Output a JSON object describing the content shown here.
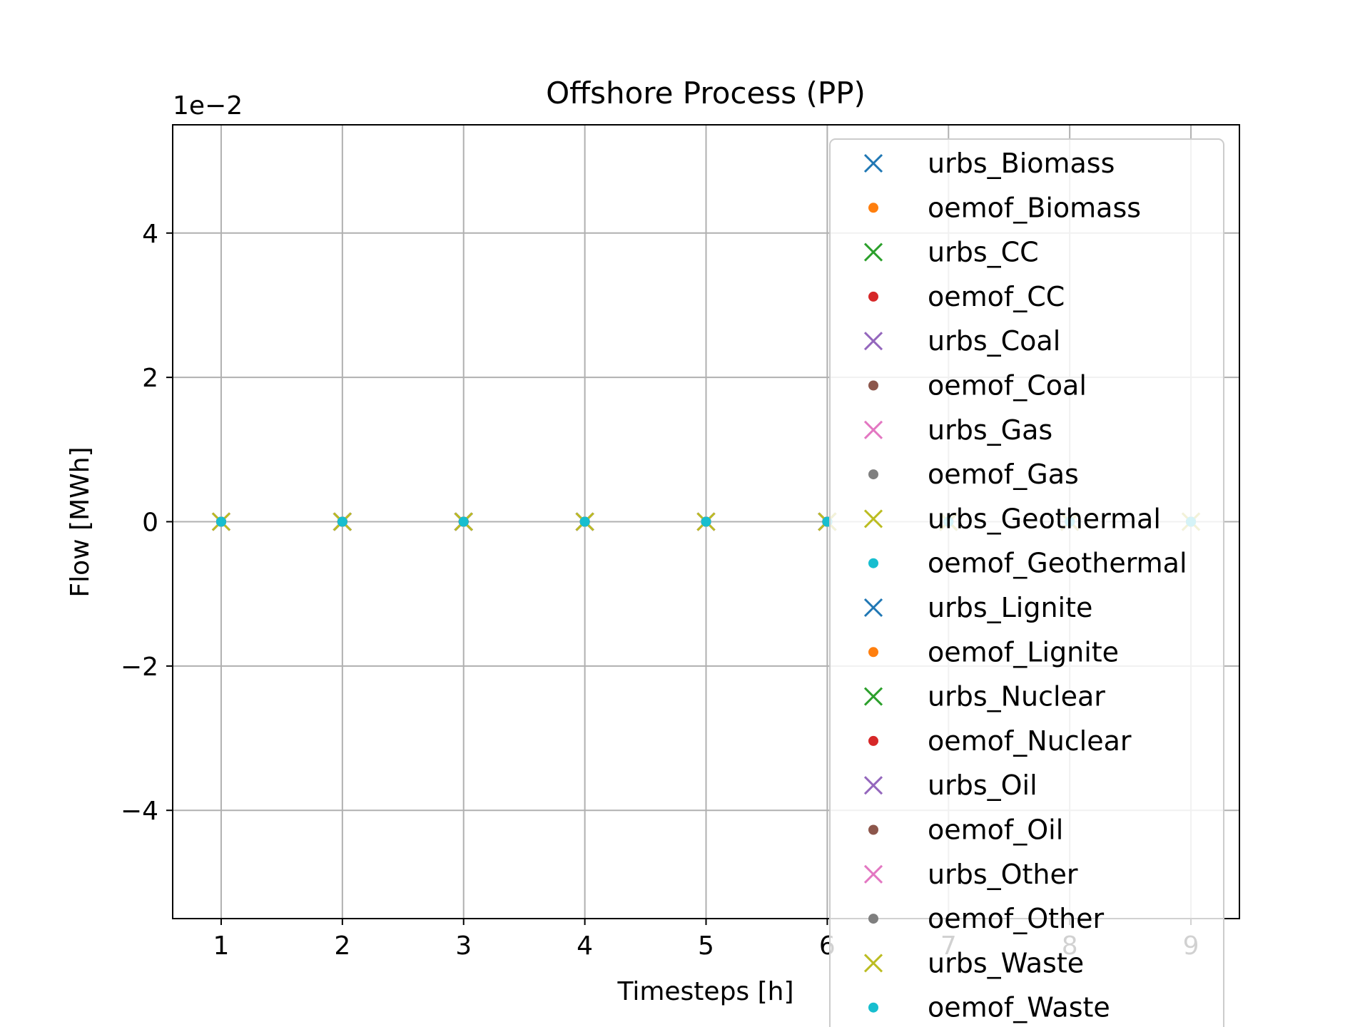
{
  "chart_data": {
    "type": "scatter",
    "title": "Offshore Process (PP)",
    "xlabel": "Timesteps [h]",
    "ylabel": "Flow [MWh]",
    "y_scale_label": "1e−2",
    "x": [
      1,
      2,
      3,
      4,
      5,
      6,
      7,
      8,
      9
    ],
    "xlim": [
      0.6,
      9.4
    ],
    "ylim": [
      -5.5,
      5.5
    ],
    "xticks": [
      1,
      2,
      3,
      4,
      5,
      6,
      7,
      8,
      9
    ],
    "yticks": [
      -4,
      -2,
      0,
      2,
      4
    ],
    "ytick_labels": [
      "−4",
      "−2",
      "0",
      "2",
      "4"
    ],
    "grid": true,
    "legend_position": "right",
    "series": [
      {
        "name": "urbs_Biomass",
        "marker": "x",
        "color": "#1f77b4",
        "values": [
          0,
          0,
          0,
          0,
          0,
          0,
          0,
          0,
          0
        ]
      },
      {
        "name": "oemof_Biomass",
        "marker": "dot",
        "color": "#ff7f0e",
        "values": [
          0,
          0,
          0,
          0,
          0,
          0,
          0,
          0,
          0
        ]
      },
      {
        "name": "urbs_CC",
        "marker": "x",
        "color": "#2ca02c",
        "values": [
          0,
          0,
          0,
          0,
          0,
          0,
          0,
          0,
          0
        ]
      },
      {
        "name": "oemof_CC",
        "marker": "dot",
        "color": "#d62728",
        "values": [
          0,
          0,
          0,
          0,
          0,
          0,
          0,
          0,
          0
        ]
      },
      {
        "name": "urbs_Coal",
        "marker": "x",
        "color": "#9467bd",
        "values": [
          0,
          0,
          0,
          0,
          0,
          0,
          0,
          0,
          0
        ]
      },
      {
        "name": "oemof_Coal",
        "marker": "dot",
        "color": "#8c564b",
        "values": [
          0,
          0,
          0,
          0,
          0,
          0,
          0,
          0,
          0
        ]
      },
      {
        "name": "urbs_Gas",
        "marker": "x",
        "color": "#e377c2",
        "values": [
          0,
          0,
          0,
          0,
          0,
          0,
          0,
          0,
          0
        ]
      },
      {
        "name": "oemof_Gas",
        "marker": "dot",
        "color": "#7f7f7f",
        "values": [
          0,
          0,
          0,
          0,
          0,
          0,
          0,
          0,
          0
        ]
      },
      {
        "name": "urbs_Geothermal",
        "marker": "x",
        "color": "#bcbd22",
        "values": [
          0,
          0,
          0,
          0,
          0,
          0,
          0,
          0,
          0
        ]
      },
      {
        "name": "oemof_Geothermal",
        "marker": "dot",
        "color": "#17becf",
        "values": [
          0,
          0,
          0,
          0,
          0,
          0,
          0,
          0,
          0
        ]
      },
      {
        "name": "urbs_Lignite",
        "marker": "x",
        "color": "#1f77b4",
        "values": [
          0,
          0,
          0,
          0,
          0,
          0,
          0,
          0,
          0
        ]
      },
      {
        "name": "oemof_Lignite",
        "marker": "dot",
        "color": "#ff7f0e",
        "values": [
          0,
          0,
          0,
          0,
          0,
          0,
          0,
          0,
          0
        ]
      },
      {
        "name": "urbs_Nuclear",
        "marker": "x",
        "color": "#2ca02c",
        "values": [
          0,
          0,
          0,
          0,
          0,
          0,
          0,
          0,
          0
        ]
      },
      {
        "name": "oemof_Nuclear",
        "marker": "dot",
        "color": "#d62728",
        "values": [
          0,
          0,
          0,
          0,
          0,
          0,
          0,
          0,
          0
        ]
      },
      {
        "name": "urbs_Oil",
        "marker": "x",
        "color": "#9467bd",
        "values": [
          0,
          0,
          0,
          0,
          0,
          0,
          0,
          0,
          0
        ]
      },
      {
        "name": "oemof_Oil",
        "marker": "dot",
        "color": "#8c564b",
        "values": [
          0,
          0,
          0,
          0,
          0,
          0,
          0,
          0,
          0
        ]
      },
      {
        "name": "urbs_Other",
        "marker": "x",
        "color": "#e377c2",
        "values": [
          0,
          0,
          0,
          0,
          0,
          0,
          0,
          0,
          0
        ]
      },
      {
        "name": "oemof_Other",
        "marker": "dot",
        "color": "#7f7f7f",
        "values": [
          0,
          0,
          0,
          0,
          0,
          0,
          0,
          0,
          0
        ]
      },
      {
        "name": "urbs_Waste",
        "marker": "x",
        "color": "#bcbd22",
        "values": [
          0,
          0,
          0,
          0,
          0,
          0,
          0,
          0,
          0
        ]
      },
      {
        "name": "oemof_Waste",
        "marker": "dot",
        "color": "#17becf",
        "values": [
          0,
          0,
          0,
          0,
          0,
          0,
          0,
          0,
          0
        ]
      }
    ]
  }
}
